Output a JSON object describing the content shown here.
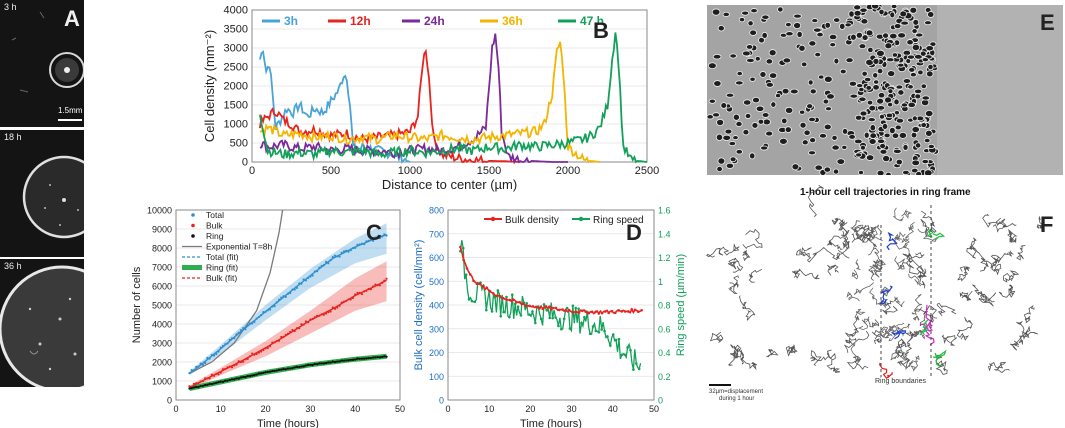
{
  "panel_labels": {
    "a": "A",
    "b": "B",
    "c": "C",
    "d": "D",
    "e": "E",
    "f": "F"
  },
  "panel_a": {
    "times": [
      "3 h",
      "18 h",
      "36 h"
    ],
    "scale_label": "1.5mm"
  },
  "panel_f": {
    "title": "1-hour cell trajectories in ring frame",
    "boundary_label": "Ring boundaries",
    "scale_label_1": "32µm=displacement",
    "scale_label_2": "during 1 hour"
  },
  "chart_data": [
    {
      "id": "B",
      "type": "line",
      "xlabel": "Distance to center (µm)",
      "ylabel": "Cell density (mm⁻²)",
      "xlim": [
        0,
        2500
      ],
      "ylim": [
        0,
        4000
      ],
      "xticks": [
        "0",
        "500",
        "1000",
        "1500",
        "2000",
        "2500"
      ],
      "yticks": [
        "0",
        "500",
        "1000",
        "1500",
        "2000",
        "2500",
        "3000",
        "3500",
        "4000"
      ],
      "legend_position": "top",
      "series": [
        {
          "name": "3h",
          "color": "#4aa3d8",
          "x": [
            50,
            70,
            90,
            110,
            130,
            150,
            180,
            220,
            260,
            300,
            350,
            400,
            450,
            500,
            550,
            580,
            600,
            620,
            640,
            660,
            700,
            750,
            800,
            850,
            900,
            950,
            1000
          ],
          "y": [
            2700,
            3000,
            2400,
            2600,
            1800,
            900,
            1100,
            1400,
            1300,
            1500,
            1200,
            1400,
            1300,
            1600,
            1900,
            2300,
            2250,
            1500,
            400,
            300,
            400,
            350,
            300,
            250,
            200,
            100,
            0
          ]
        },
        {
          "name": "12h",
          "color": "#e8231f",
          "x": [
            50,
            100,
            150,
            200,
            250,
            300,
            400,
            500,
            600,
            700,
            800,
            900,
            1000,
            1050,
            1080,
            1100,
            1120,
            1150,
            1200,
            1300,
            1400,
            1500,
            1600,
            1700
          ],
          "y": [
            1000,
            1200,
            1350,
            1100,
            1000,
            800,
            850,
            700,
            750,
            600,
            650,
            700,
            800,
            1200,
            2600,
            3000,
            2200,
            600,
            200,
            100,
            50,
            30,
            20,
            0
          ]
        },
        {
          "name": "24h",
          "color": "#7a2a9a",
          "x": [
            50,
            100,
            200,
            300,
            400,
            500,
            600,
            700,
            800,
            900,
            1000,
            1100,
            1200,
            1300,
            1400,
            1480,
            1520,
            1540,
            1560,
            1580,
            1620,
            1700,
            1800,
            1900,
            2000
          ],
          "y": [
            500,
            400,
            450,
            350,
            400,
            300,
            350,
            300,
            300,
            250,
            300,
            350,
            300,
            400,
            600,
            900,
            3000,
            3350,
            2500,
            800,
            150,
            50,
            20,
            0,
            0
          ]
        },
        {
          "name": "36h",
          "color": "#f4b400",
          "x": [
            50,
            100,
            200,
            300,
            400,
            500,
            600,
            700,
            800,
            900,
            1000,
            1100,
            1200,
            1300,
            1400,
            1500,
            1600,
            1700,
            1800,
            1850,
            1900,
            1930,
            1950,
            1970,
            2000,
            2100,
            2200
          ],
          "y": [
            800,
            900,
            700,
            750,
            650,
            700,
            600,
            650,
            600,
            700,
            650,
            600,
            700,
            650,
            600,
            650,
            700,
            750,
            800,
            1000,
            1800,
            2900,
            3150,
            2400,
            400,
            50,
            0
          ]
        },
        {
          "name": "47 h",
          "color": "#13a05a",
          "x": [
            50,
            100,
            200,
            300,
            400,
            500,
            600,
            700,
            800,
            900,
            1000,
            1100,
            1200,
            1300,
            1400,
            1500,
            1600,
            1700,
            1800,
            1900,
            2000,
            2100,
            2150,
            2200,
            2250,
            2280,
            2300,
            2320,
            2350,
            2400,
            2500
          ],
          "y": [
            1300,
            300,
            200,
            250,
            200,
            300,
            250,
            300,
            200,
            250,
            300,
            250,
            300,
            350,
            300,
            400,
            350,
            450,
            400,
            450,
            500,
            600,
            700,
            900,
            1500,
            2700,
            3450,
            2600,
            400,
            50,
            0
          ]
        }
      ]
    },
    {
      "id": "C",
      "type": "line",
      "xlabel": "Time (hours)",
      "ylabel": "Number of cells",
      "xlim": [
        0,
        50
      ],
      "ylim": [
        0,
        10000
      ],
      "xticks": [
        "0",
        "10",
        "20",
        "30",
        "40",
        "50"
      ],
      "yticks": [
        "0",
        "1000",
        "2000",
        "3000",
        "4000",
        "5000",
        "6000",
        "7000",
        "8000",
        "9000",
        "10000"
      ],
      "legend_position": "top-left",
      "legend": [
        "Total",
        "Bulk",
        "Ring",
        "Exponential T=8h",
        "Total (fit)",
        "Ring (fit)",
        "Bulk (fit)"
      ],
      "series": [
        {
          "name": "Total",
          "color": "#2f8fcf",
          "x": [
            3,
            5,
            10,
            15,
            20,
            25,
            30,
            35,
            40,
            45,
            47
          ],
          "y": [
            1400,
            1750,
            2700,
            3700,
            4650,
            5600,
            6550,
            7450,
            8050,
            8550,
            8700
          ]
        },
        {
          "name": "Total band",
          "color": "#2f8fcf",
          "x": [
            3,
            10,
            20,
            30,
            40,
            47
          ],
          "y_low": [
            1300,
            2400,
            4200,
            5900,
            7200,
            7700
          ],
          "y_high": [
            1500,
            2900,
            5000,
            6900,
            8500,
            9300
          ]
        },
        {
          "name": "Bulk",
          "color": "#e8231f",
          "x": [
            3,
            5,
            10,
            15,
            20,
            25,
            30,
            35,
            40,
            45,
            47
          ],
          "y": [
            650,
            900,
            1500,
            2100,
            2750,
            3450,
            4200,
            4800,
            5500,
            6050,
            6300
          ]
        },
        {
          "name": "Bulk band",
          "color": "#e8231f",
          "x": [
            3,
            10,
            20,
            30,
            40,
            47
          ],
          "y_low": [
            550,
            1300,
            2300,
            3500,
            4700,
            5200
          ],
          "y_high": [
            750,
            1700,
            3100,
            4700,
            6400,
            7300
          ]
        },
        {
          "name": "Ring",
          "color": "#111111",
          "x": [
            3,
            5,
            10,
            15,
            20,
            25,
            30,
            35,
            40,
            45,
            47
          ],
          "y": [
            600,
            700,
            950,
            1200,
            1450,
            1650,
            1850,
            2000,
            2150,
            2250,
            2300
          ]
        },
        {
          "name": "Ring (fit)",
          "color": "#2fae4f",
          "x": [
            3,
            10,
            20,
            30,
            40,
            47
          ],
          "y": [
            600,
            950,
            1450,
            1850,
            2150,
            2300
          ]
        },
        {
          "name": "Exponential T=8h",
          "color": "#7a7a7a",
          "x": [
            3,
            8,
            13,
            18,
            21,
            23,
            24
          ],
          "y": [
            1400,
            2000,
            3000,
            4700,
            6700,
            8800,
            10300
          ]
        }
      ]
    },
    {
      "id": "D",
      "type": "line",
      "xlabel": "Time (hours)",
      "ylabel": "Bulk cell density (cell/mm²)",
      "ylabel_right": "Ring speed (µm/min)",
      "xlim": [
        0,
        50
      ],
      "ylim": [
        0,
        800
      ],
      "ylim_right": [
        0,
        1.6
      ],
      "xticks": [
        "0",
        "10",
        "20",
        "30",
        "40",
        "50"
      ],
      "yticks": [
        "0",
        "100",
        "200",
        "300",
        "400",
        "500",
        "600",
        "700",
        "800"
      ],
      "yticks_right": [
        "0",
        "0.2",
        "0.4",
        "0.6",
        "0.8",
        "1",
        "1.2",
        "1.4",
        "1.6"
      ],
      "legend_position": "top",
      "series": [
        {
          "name": "Bulk density",
          "color": "#e8231f",
          "axis": "left",
          "x": [
            3,
            4,
            5,
            6,
            8,
            10,
            12,
            15,
            18,
            20,
            25,
            30,
            35,
            40,
            45,
            47
          ],
          "y": [
            650,
            580,
            540,
            510,
            480,
            460,
            440,
            420,
            405,
            395,
            385,
            375,
            370,
            372,
            375,
            378
          ]
        },
        {
          "name": "Ring speed",
          "color": "#13a05a",
          "axis": "right",
          "x": [
            3,
            4,
            5,
            6,
            8,
            10,
            12,
            15,
            18,
            20,
            22,
            25,
            28,
            30,
            32,
            35,
            38,
            40,
            42,
            44,
            46,
            47
          ],
          "y": [
            1.35,
            1.1,
            0.95,
            0.9,
            0.88,
            0.85,
            0.82,
            0.8,
            0.78,
            0.75,
            0.74,
            0.72,
            0.7,
            0.69,
            0.67,
            0.65,
            0.6,
            0.52,
            0.42,
            0.36,
            0.3,
            0.28
          ]
        }
      ]
    }
  ]
}
